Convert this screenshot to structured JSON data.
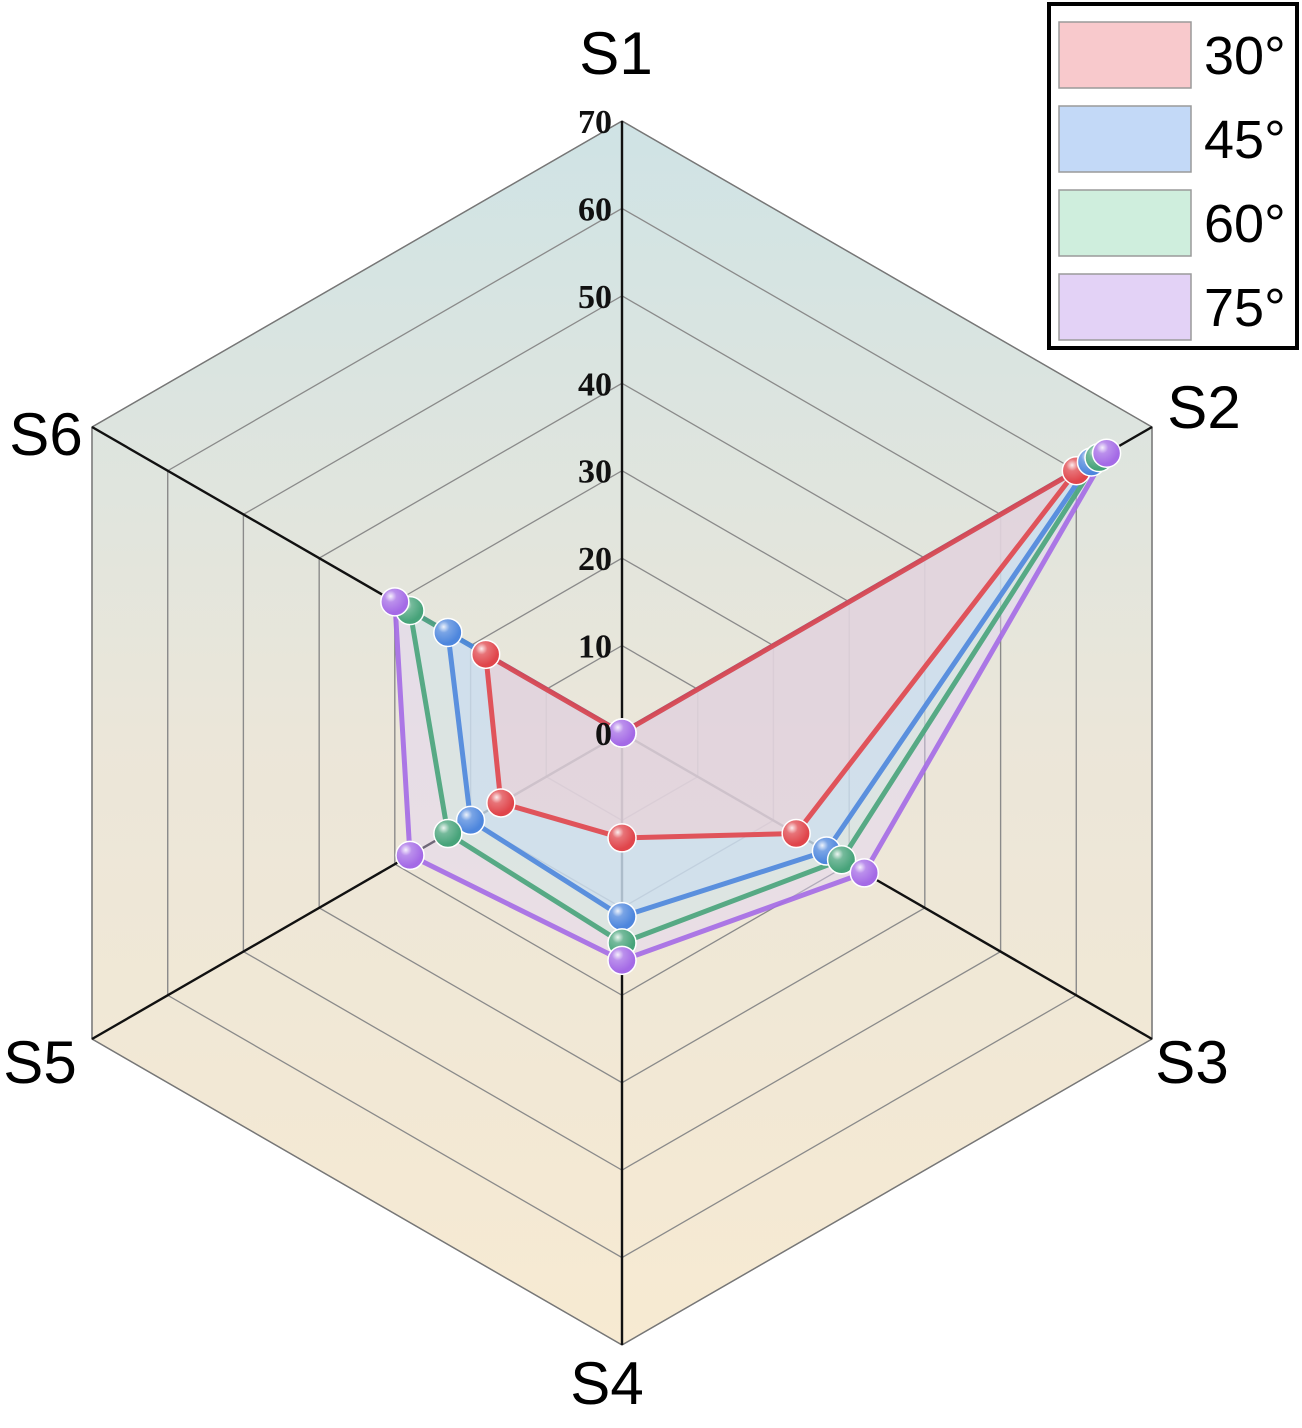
{
  "chart_data": {
    "type": "radar",
    "axes": [
      "S1",
      "S2",
      "S3",
      "S4",
      "S5",
      "S6"
    ],
    "ticks": [
      "0",
      "10",
      "20",
      "30",
      "40",
      "50",
      "60",
      "70"
    ],
    "range": [
      0,
      70
    ],
    "grid": true,
    "legend_position": "top-right",
    "series": [
      {
        "name": "30°",
        "color": "#e0454b",
        "fill": "#f8c9cc",
        "values": [
          0,
          60,
          23,
          12,
          16,
          18
        ]
      },
      {
        "name": "45°",
        "color": "#4d86dd",
        "fill": "#c3d9f7",
        "values": [
          0,
          62,
          27,
          21,
          20,
          23
        ]
      },
      {
        "name": "60°",
        "color": "#47a37a",
        "fill": "#cfeedd",
        "values": [
          0,
          63,
          29,
          24,
          23,
          28
        ]
      },
      {
        "name": "75°",
        "color": "#a46ae6",
        "fill": "#e3d2f6",
        "values": [
          0,
          64,
          32,
          26,
          28,
          30
        ]
      }
    ]
  }
}
